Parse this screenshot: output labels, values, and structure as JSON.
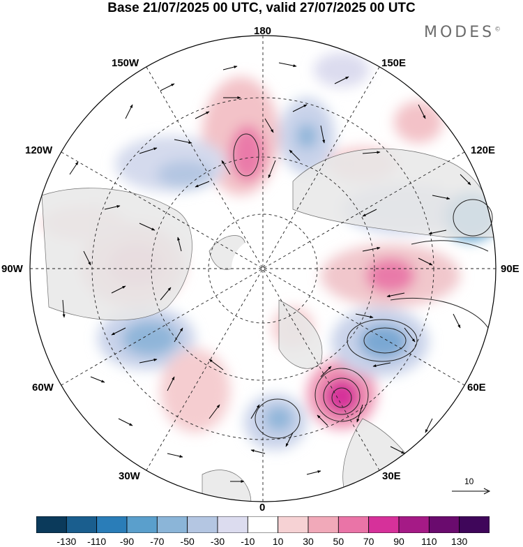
{
  "title": "Base 21/07/2025 00 UTC, valid 27/07/2025 00 UTC",
  "brand": "MODES",
  "brand_mark": "©",
  "longitude_labels": {
    "top": "180",
    "top_left": "150W",
    "top_right": "150E",
    "upper_left": "120W",
    "upper_right": "120E",
    "left": "90W",
    "right": "90E",
    "lower_left": "60W",
    "lower_right": "60E",
    "bottom_left": "30W",
    "bottom_right": "30E",
    "bottom": "0"
  },
  "reference_vector": "10",
  "colorbar": {
    "ticks": [
      "-130",
      "-110",
      "-90",
      "-70",
      "-50",
      "-30",
      "-10",
      "10",
      "30",
      "50",
      "70",
      "90",
      "110",
      "130"
    ],
    "colors": [
      "#0b3a5b",
      "#1a5e8e",
      "#2a7db8",
      "#5a9fcc",
      "#8bb5d8",
      "#b4c6e2",
      "#dcdcef",
      "#ffffff",
      "#f6d2d4",
      "#f1a9b9",
      "#ea74a7",
      "#d6319a",
      "#a51a86",
      "#6a0b6e",
      "#3f065a"
    ]
  }
}
